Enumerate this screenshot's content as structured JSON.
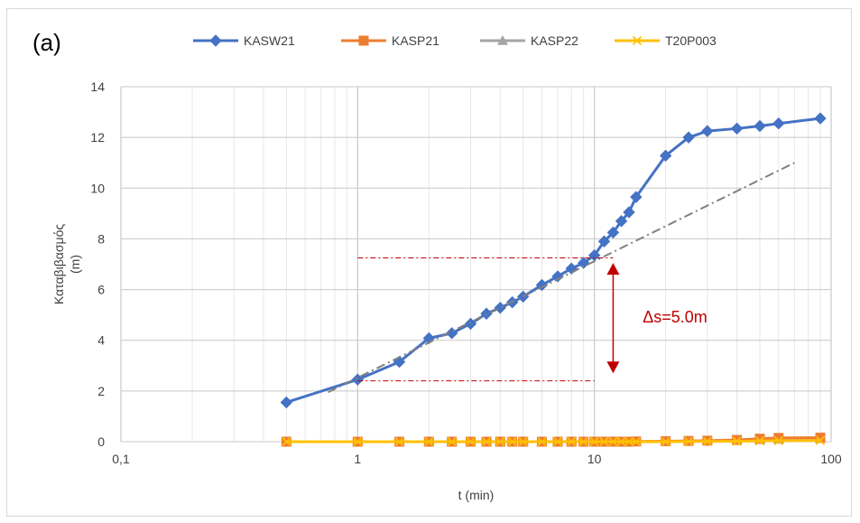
{
  "panel_label": "(a)",
  "colors": {
    "KASW21": "#4472c4",
    "KASP21": "#ed7d31",
    "KASP22": "#a5a5a5",
    "T20P003": "#ffc000",
    "grid_major": "#c8c8c8",
    "grid_minor": "#e6e6e6",
    "fit_line": "#808080",
    "annotation": "#c00000"
  },
  "chart_data": {
    "type": "line",
    "xscale": "log",
    "xlim": [
      0.1,
      100
    ],
    "ylim": [
      0,
      14
    ],
    "grid": true,
    "legend_position": "top",
    "xlabel": "t (min)",
    "ylabel_lines": [
      "Καταβιβασμός",
      "(m)"
    ],
    "x_tick_labels": [
      {
        "value": 0.1,
        "label": "0,1"
      },
      {
        "value": 1,
        "label": "1"
      },
      {
        "value": 10,
        "label": "10"
      },
      {
        "value": 100,
        "label": "100"
      }
    ],
    "y_ticks": [
      0,
      2,
      4,
      6,
      8,
      10,
      12,
      14
    ],
    "series": [
      {
        "name": "KASW21",
        "marker": "diamond",
        "x": [
          0.5,
          1,
          1.5,
          2,
          2.5,
          3,
          3.5,
          4,
          4.5,
          5,
          6,
          7,
          8,
          9,
          10,
          11,
          12,
          13,
          14,
          15,
          20,
          25,
          30,
          40,
          50,
          60,
          90
        ],
        "y": [
          1.55,
          2.45,
          3.15,
          4.08,
          4.28,
          4.65,
          5.05,
          5.28,
          5.5,
          5.72,
          6.18,
          6.52,
          6.83,
          7.05,
          7.35,
          7.9,
          8.25,
          8.7,
          9.05,
          9.65,
          11.28,
          12.0,
          12.25,
          12.35,
          12.45,
          12.55,
          12.75
        ]
      },
      {
        "name": "KASP21",
        "marker": "square",
        "x": [
          0.5,
          1,
          1.5,
          2,
          2.5,
          3,
          3.5,
          4,
          4.5,
          5,
          6,
          7,
          8,
          9,
          10,
          11,
          12,
          13,
          14,
          15,
          20,
          25,
          30,
          40,
          50,
          60,
          90
        ],
        "y": [
          0,
          0,
          0,
          0,
          0,
          0,
          0,
          0,
          0,
          0,
          0,
          0,
          0,
          0,
          0,
          0,
          0,
          0,
          0,
          0.01,
          0.02,
          0.03,
          0.04,
          0.07,
          0.12,
          0.15,
          0.16
        ]
      },
      {
        "name": "KASP22",
        "marker": "triangle",
        "x": [
          0.5,
          1,
          1.5,
          2,
          2.5,
          3,
          3.5,
          4,
          4.5,
          5,
          6,
          7,
          8,
          9,
          10,
          11,
          12,
          13,
          14,
          15,
          20,
          25,
          30,
          40,
          50,
          60,
          90
        ],
        "y": [
          0,
          0,
          0,
          0,
          0,
          0,
          0,
          0,
          0,
          0,
          0,
          0,
          0,
          0,
          0,
          0,
          0,
          0,
          0,
          0,
          0.01,
          0.02,
          0.03,
          0.05,
          0.08,
          0.1,
          0.12
        ]
      },
      {
        "name": "T20P003",
        "marker": "x",
        "x": [
          0.5,
          1,
          1.5,
          2,
          2.5,
          3,
          3.5,
          4,
          4.5,
          5,
          6,
          7,
          8,
          9,
          10,
          11,
          12,
          13,
          14,
          15,
          20,
          25,
          30,
          40,
          50,
          60,
          90
        ],
        "y": [
          0,
          0,
          0,
          0,
          0,
          0,
          0,
          0,
          0,
          0,
          0,
          0,
          0,
          0,
          0,
          0,
          0,
          0,
          0,
          0,
          0,
          0.01,
          0.01,
          0.02,
          0.03,
          0.04,
          0.05
        ]
      }
    ],
    "fit_line": {
      "x": [
        0.75,
        70
      ],
      "y": [
        1.95,
        11.0
      ]
    },
    "annotations": {
      "upper_ref": {
        "x": [
          1,
          12
        ],
        "y": 7.25
      },
      "lower_ref": {
        "x": [
          1,
          10
        ],
        "y": 2.4
      },
      "arrow": {
        "x": 12,
        "y_top": 7.05,
        "y_bottom": 2.7
      },
      "text": "Δs=5.0m",
      "text_position": {
        "x": 16,
        "y": 4.7
      }
    }
  }
}
